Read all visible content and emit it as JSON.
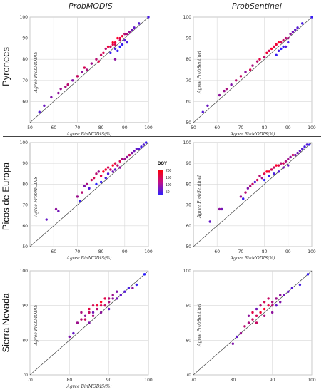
{
  "column_titles": [
    "ProbMODIS",
    "ProbSentinel"
  ],
  "row_titles": [
    "Pyrenees",
    "Picos de Europa",
    "Sierra Nevada"
  ],
  "legend": {
    "title": "DOY",
    "ticks": [
      "200",
      "150",
      "100",
      "50"
    ],
    "colors": [
      "#ff0000",
      "#2b20ff"
    ]
  },
  "chart_data": [
    {
      "type": "scatter",
      "site": "Pyrenees",
      "column": "ProbMODIS",
      "xlabel": "Agree BinMODIS(%)",
      "ylabel": "Agree ProbMODIS",
      "xlim": [
        50,
        100
      ],
      "ylim": [
        50,
        100
      ],
      "xticks": [
        50,
        60,
        70,
        80,
        90,
        100
      ],
      "yticks": [
        60,
        70,
        80,
        90,
        100
      ],
      "points": [
        [
          54,
          55
        ],
        [
          56,
          58
        ],
        [
          59,
          62
        ],
        [
          62,
          64
        ],
        [
          63,
          66
        ],
        [
          65,
          67
        ],
        [
          66,
          68
        ],
        [
          68,
          70
        ],
        [
          70,
          72
        ],
        [
          72,
          74
        ],
        [
          73,
          76
        ],
        [
          74,
          75
        ],
        [
          76,
          78
        ],
        [
          78,
          80
        ],
        [
          79,
          79
        ],
        [
          80,
          82
        ],
        [
          81,
          83
        ],
        [
          82,
          85
        ],
        [
          83,
          86
        ],
        [
          84,
          86
        ],
        [
          85,
          87
        ],
        [
          85,
          88
        ],
        [
          86,
          87
        ],
        [
          86,
          88
        ],
        [
          87,
          90
        ],
        [
          88,
          90
        ],
        [
          88,
          89
        ],
        [
          89,
          91
        ],
        [
          90,
          92
        ],
        [
          91,
          92
        ],
        [
          92,
          93
        ],
        [
          93,
          94
        ],
        [
          94,
          95
        ],
        [
          96,
          97
        ],
        [
          100,
          100
        ],
        [
          84,
          83
        ],
        [
          86,
          85
        ],
        [
          87,
          84
        ],
        [
          88,
          86
        ],
        [
          89,
          87
        ],
        [
          90,
          89
        ],
        [
          86,
          80
        ],
        [
          91,
          88
        ]
      ],
      "doy": [
        80,
        95,
        110,
        120,
        130,
        140,
        150,
        110,
        160,
        120,
        170,
        140,
        130,
        150,
        180,
        160,
        170,
        150,
        190,
        160,
        180,
        200,
        170,
        190,
        200,
        180,
        160,
        190,
        150,
        140,
        120,
        100,
        90,
        80,
        70,
        60,
        70,
        60,
        50,
        60,
        80,
        120,
        70
      ]
    },
    {
      "type": "scatter",
      "site": "Pyrenees",
      "column": "ProbSentinel",
      "xlabel": "Agree BinMODIS(%)",
      "ylabel": "Agree ProbSentinel",
      "xlim": [
        50,
        100
      ],
      "ylim": [
        50,
        100
      ],
      "xticks": [
        50,
        60,
        70,
        80,
        90,
        100
      ],
      "yticks": [
        50,
        60,
        70,
        80,
        90,
        100
      ],
      "points": [
        [
          54,
          55
        ],
        [
          56,
          58
        ],
        [
          61,
          63
        ],
        [
          63,
          65
        ],
        [
          64,
          66
        ],
        [
          66,
          68
        ],
        [
          68,
          70
        ],
        [
          70,
          72
        ],
        [
          72,
          74
        ],
        [
          74,
          75
        ],
        [
          75,
          77
        ],
        [
          77,
          79
        ],
        [
          78,
          80
        ],
        [
          80,
          81
        ],
        [
          81,
          83
        ],
        [
          82,
          84
        ],
        [
          83,
          85
        ],
        [
          84,
          86
        ],
        [
          85,
          87
        ],
        [
          86,
          88
        ],
        [
          87,
          88
        ],
        [
          88,
          89
        ],
        [
          89,
          90
        ],
        [
          90,
          90
        ],
        [
          91,
          92
        ],
        [
          92,
          93
        ],
        [
          93,
          94
        ],
        [
          94,
          95
        ],
        [
          96,
          97
        ],
        [
          100,
          100
        ],
        [
          85,
          82
        ],
        [
          86,
          84
        ],
        [
          87,
          85
        ],
        [
          88,
          86
        ],
        [
          89,
          86
        ],
        [
          90,
          88
        ]
      ],
      "doy": [
        80,
        95,
        120,
        130,
        140,
        110,
        150,
        160,
        120,
        170,
        140,
        150,
        180,
        160,
        190,
        170,
        200,
        180,
        190,
        200,
        170,
        160,
        150,
        140,
        120,
        100,
        90,
        80,
        70,
        60,
        60,
        70,
        50,
        60,
        80,
        70
      ]
    },
    {
      "type": "scatter",
      "site": "Picos de Europa",
      "column": "ProbMODIS",
      "xlabel": "Agree BinMODIS(%)",
      "ylabel": "Agree ProbMODIS",
      "xlim": [
        50,
        100
      ],
      "ylim": [
        50,
        100
      ],
      "xticks": [
        60,
        70,
        80,
        90,
        100
      ],
      "yticks": [
        50,
        60,
        70,
        80,
        90,
        100
      ],
      "points": [
        [
          57,
          63
        ],
        [
          61,
          68
        ],
        [
          62,
          67
        ],
        [
          70,
          74
        ],
        [
          71,
          72
        ],
        [
          72,
          76
        ],
        [
          73,
          79
        ],
        [
          74,
          80
        ],
        [
          75,
          78
        ],
        [
          76,
          82
        ],
        [
          77,
          83
        ],
        [
          78,
          85
        ],
        [
          79,
          86
        ],
        [
          80,
          84
        ],
        [
          81,
          86
        ],
        [
          82,
          87
        ],
        [
          83,
          88
        ],
        [
          84,
          87
        ],
        [
          85,
          89
        ],
        [
          86,
          90
        ],
        [
          87,
          89
        ],
        [
          88,
          91
        ],
        [
          89,
          92
        ],
        [
          90,
          92
        ],
        [
          91,
          93
        ],
        [
          92,
          94
        ],
        [
          93,
          95
        ],
        [
          94,
          96
        ],
        [
          95,
          97
        ],
        [
          96,
          97
        ],
        [
          97,
          98
        ],
        [
          98,
          99
        ],
        [
          99,
          100
        ],
        [
          78,
          80
        ],
        [
          80,
          81
        ],
        [
          82,
          83
        ],
        [
          83,
          85
        ],
        [
          85,
          86
        ],
        [
          86,
          87
        ],
        [
          88,
          88
        ]
      ],
      "doy": [
        90,
        120,
        100,
        130,
        60,
        150,
        110,
        140,
        80,
        160,
        170,
        150,
        130,
        180,
        200,
        190,
        170,
        160,
        200,
        180,
        150,
        170,
        140,
        130,
        120,
        160,
        110,
        100,
        90,
        80,
        70,
        80,
        60,
        50,
        60,
        70,
        80,
        100,
        90,
        120
      ]
    },
    {
      "type": "scatter",
      "site": "Picos de Europa",
      "column": "ProbSentinel",
      "xlabel": "Agree BinMODIS(%)",
      "ylabel": "Agree ProbSentinel",
      "xlim": [
        50,
        100
      ],
      "ylim": [
        50,
        100
      ],
      "xticks": [
        60,
        70,
        80,
        90,
        100
      ],
      "yticks": [
        50,
        60,
        70,
        80,
        90,
        100
      ],
      "points": [
        [
          57,
          62
        ],
        [
          61,
          68
        ],
        [
          62,
          68
        ],
        [
          70,
          74
        ],
        [
          71,
          73
        ],
        [
          72,
          76
        ],
        [
          73,
          78
        ],
        [
          74,
          79
        ],
        [
          75,
          80
        ],
        [
          76,
          81
        ],
        [
          77,
          82
        ],
        [
          78,
          84
        ],
        [
          79,
          83
        ],
        [
          80,
          85
        ],
        [
          81,
          86
        ],
        [
          82,
          86
        ],
        [
          83,
          87
        ],
        [
          84,
          88
        ],
        [
          85,
          89
        ],
        [
          86,
          89
        ],
        [
          87,
          90
        ],
        [
          88,
          90
        ],
        [
          89,
          91
        ],
        [
          90,
          92
        ],
        [
          91,
          93
        ],
        [
          92,
          94
        ],
        [
          93,
          94
        ],
        [
          94,
          95
        ],
        [
          95,
          96
        ],
        [
          96,
          97
        ],
        [
          97,
          98
        ],
        [
          98,
          99
        ],
        [
          99,
          99
        ],
        [
          80,
          82
        ],
        [
          82,
          84
        ],
        [
          84,
          85
        ],
        [
          86,
          86
        ],
        [
          88,
          88
        ],
        [
          90,
          89
        ]
      ],
      "doy": [
        90,
        120,
        100,
        130,
        60,
        150,
        110,
        140,
        160,
        80,
        170,
        150,
        130,
        180,
        200,
        190,
        170,
        160,
        200,
        180,
        150,
        170,
        140,
        130,
        120,
        160,
        110,
        100,
        90,
        80,
        70,
        80,
        60,
        50,
        60,
        70,
        80,
        100,
        90
      ]
    },
    {
      "type": "scatter",
      "site": "Sierra Nevada",
      "column": "ProbMODIS",
      "xlabel": "Agree BinMODIS(%)",
      "ylabel": "Agree ProbMODIS",
      "xlim": [
        70,
        100
      ],
      "ylim": [
        70,
        100
      ],
      "xticks": [
        70,
        80,
        90,
        100
      ],
      "yticks": [
        70,
        80,
        90,
        100
      ],
      "points": [
        [
          80,
          81
        ],
        [
          81,
          82
        ],
        [
          82,
          85
        ],
        [
          83,
          86
        ],
        [
          83,
          88
        ],
        [
          84,
          87
        ],
        [
          85,
          88
        ],
        [
          85,
          89
        ],
        [
          86,
          90
        ],
        [
          86,
          88
        ],
        [
          87,
          90
        ],
        [
          87,
          89
        ],
        [
          88,
          91
        ],
        [
          88,
          90
        ],
        [
          89,
          92
        ],
        [
          89,
          90
        ],
        [
          90,
          92
        ],
        [
          90,
          91
        ],
        [
          91,
          93
        ],
        [
          91,
          92
        ],
        [
          92,
          94
        ],
        [
          92,
          92
        ],
        [
          93,
          93
        ],
        [
          94,
          94
        ],
        [
          95,
          95
        ],
        [
          96,
          95
        ],
        [
          97,
          96
        ],
        [
          99,
          99
        ],
        [
          84,
          86
        ],
        [
          86,
          87
        ],
        [
          88,
          88
        ],
        [
          90,
          89
        ],
        [
          85,
          85
        ]
      ],
      "doy": [
        110,
        90,
        130,
        150,
        140,
        120,
        160,
        180,
        170,
        100,
        190,
        150,
        200,
        170,
        180,
        160,
        150,
        140,
        130,
        120,
        110,
        100,
        90,
        80,
        70,
        120,
        60,
        50,
        160,
        140,
        120,
        90,
        110
      ]
    },
    {
      "type": "scatter",
      "site": "Sierra Nevada",
      "column": "ProbSentinel",
      "xlabel": "",
      "ylabel": "Agree ProbSentinel",
      "xlim": [
        70,
        100
      ],
      "ylim": [
        70,
        100
      ],
      "xticks": [
        70,
        80,
        90,
        100
      ],
      "yticks": [
        70,
        80,
        90,
        100
      ],
      "points": [
        [
          80,
          79
        ],
        [
          81,
          81
        ],
        [
          82,
          82
        ],
        [
          83,
          84
        ],
        [
          84,
          85
        ],
        [
          84,
          87
        ],
        [
          85,
          86
        ],
        [
          85,
          88
        ],
        [
          86,
          87
        ],
        [
          86,
          89
        ],
        [
          87,
          88
        ],
        [
          87,
          90
        ],
        [
          88,
          89
        ],
        [
          88,
          91
        ],
        [
          89,
          90
        ],
        [
          89,
          92
        ],
        [
          90,
          90
        ],
        [
          90,
          91
        ],
        [
          91,
          92
        ],
        [
          92,
          93
        ],
        [
          92,
          91
        ],
        [
          93,
          93
        ],
        [
          94,
          94
        ],
        [
          95,
          95
        ],
        [
          97,
          96
        ],
        [
          99,
          99
        ],
        [
          86,
          85
        ],
        [
          88,
          87
        ],
        [
          90,
          88
        ],
        [
          91,
          90
        ]
      ],
      "doy": [
        110,
        90,
        130,
        150,
        140,
        120,
        160,
        180,
        170,
        100,
        190,
        150,
        200,
        170,
        180,
        160,
        150,
        140,
        130,
        120,
        110,
        100,
        90,
        80,
        70,
        60,
        160,
        140,
        120,
        90
      ]
    }
  ]
}
